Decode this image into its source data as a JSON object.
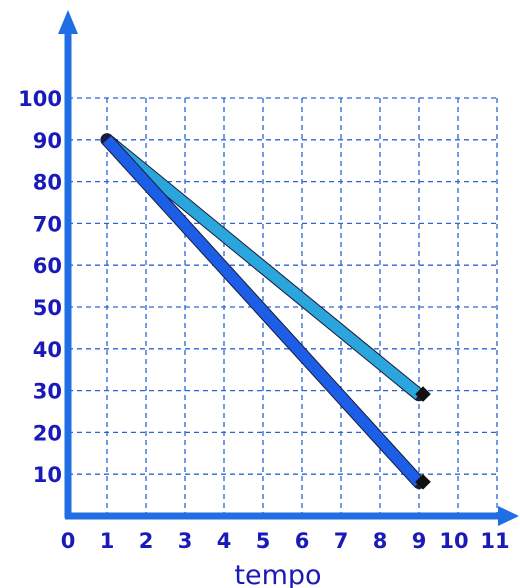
{
  "chart_data": {
    "type": "line",
    "title": "",
    "xlabel": "tempo",
    "ylabel": "",
    "x_ticks": [
      "0",
      "1",
      "2",
      "3",
      "4",
      "5",
      "6",
      "7",
      "8",
      "9",
      "10",
      "11"
    ],
    "y_ticks": [
      "10",
      "20",
      "30",
      "40",
      "50",
      "60",
      "70",
      "80",
      "90",
      "100"
    ],
    "xlim": [
      0,
      11
    ],
    "ylim": [
      0,
      100
    ],
    "grid": true,
    "series": [
      {
        "color": "#2aa6dd",
        "x": [
          1,
          9
        ],
        "y": [
          90,
          29
        ]
      },
      {
        "color": "#1c5fe6",
        "x": [
          1,
          9
        ],
        "y": [
          90,
          8
        ]
      }
    ]
  },
  "colors": {
    "axis": "#1f6ee6",
    "grid": "#2a66d6",
    "tick_text": "#1a1ab8",
    "endpoint_marker": "#111111"
  }
}
